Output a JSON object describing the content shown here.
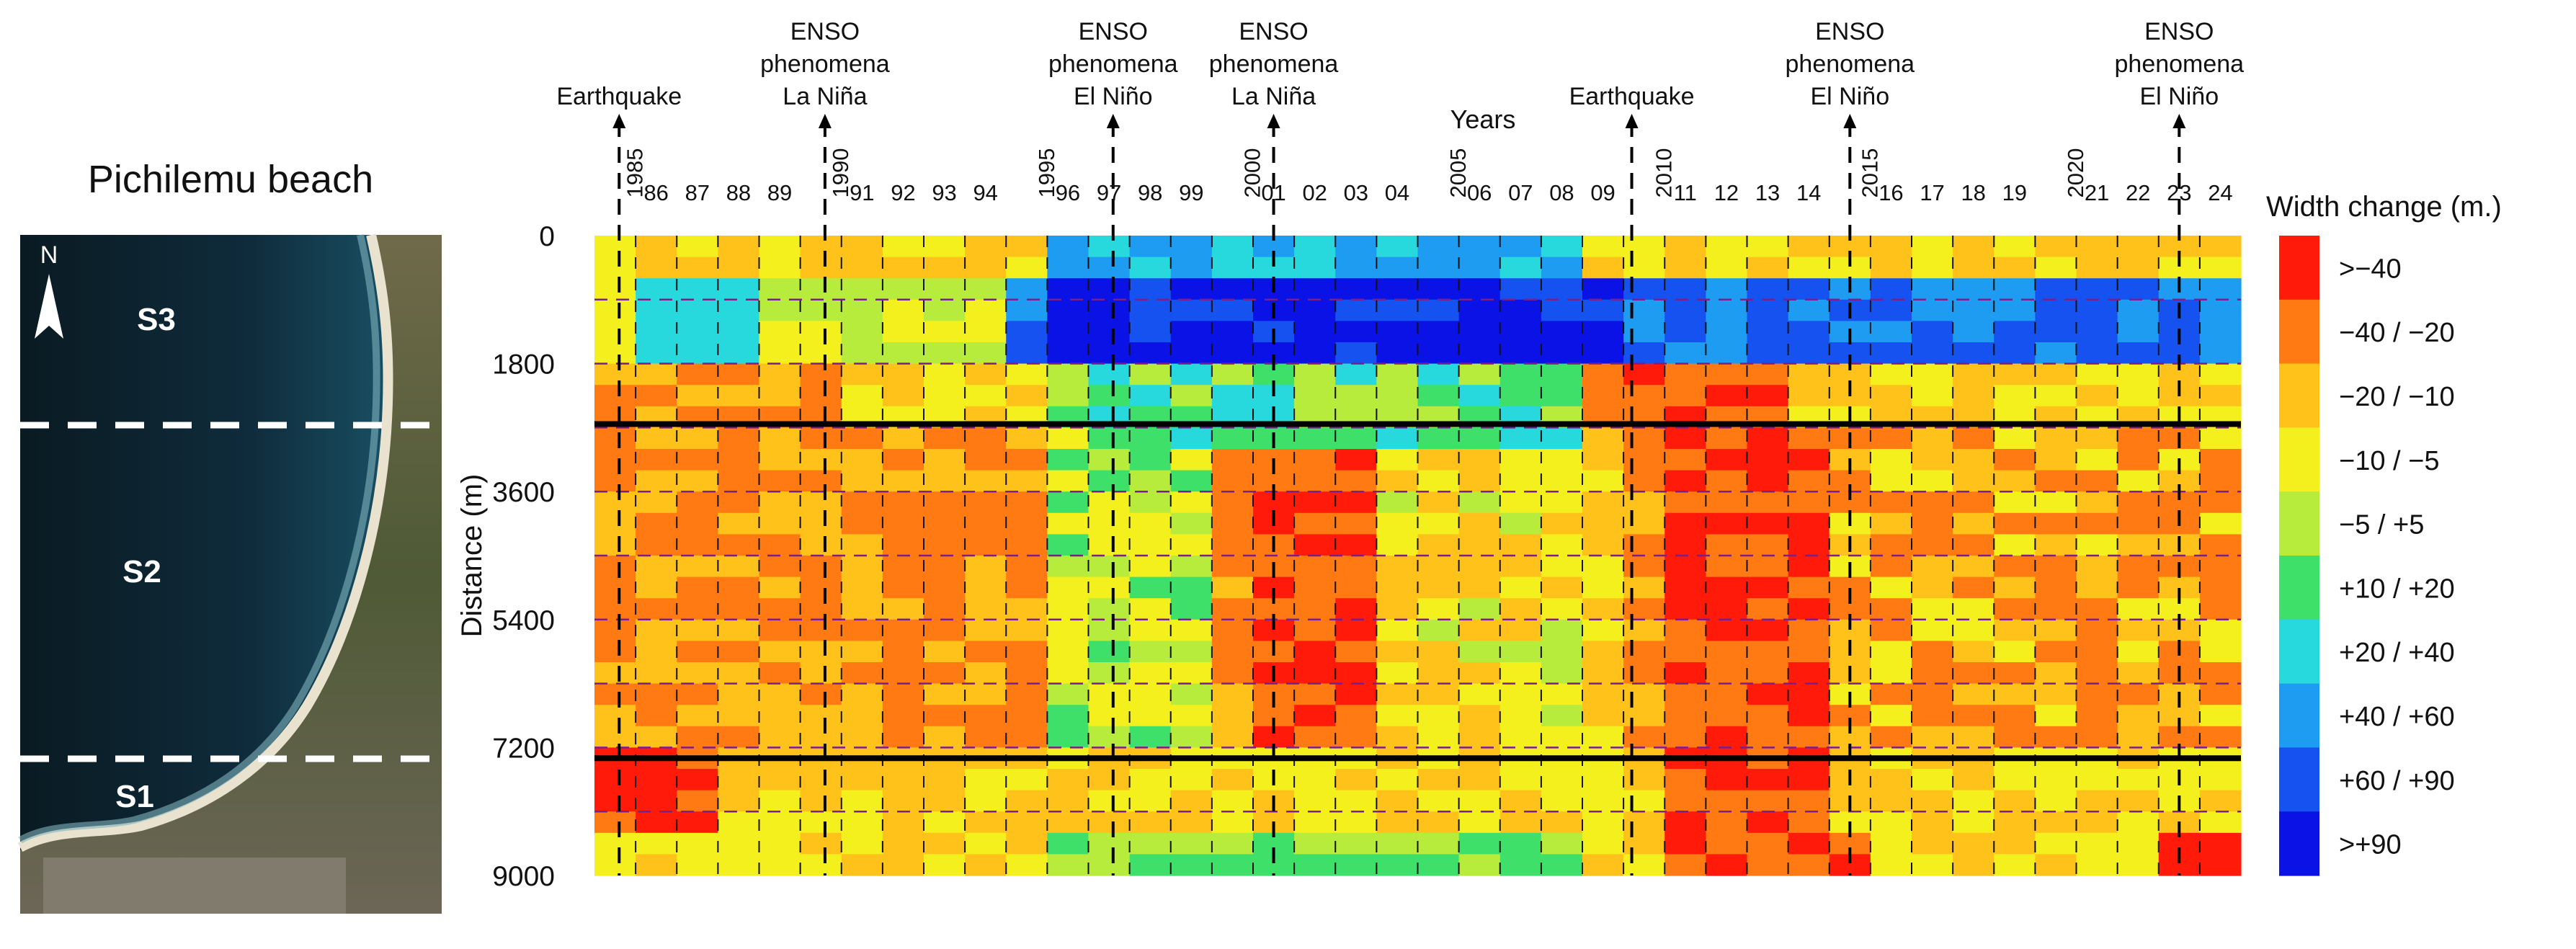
{
  "map_panel": {
    "title": "Pichilemu beach",
    "north_label": "N",
    "sector_labels": [
      "S3",
      "S2",
      "S1"
    ]
  },
  "chart_data": {
    "type": "heatmap",
    "title": "",
    "xlabel": "Years",
    "ylabel": "Distance (m)",
    "y_ticks": [
      0,
      1800,
      3600,
      5400,
      7200,
      9000
    ],
    "ylim": [
      0,
      9000
    ],
    "x_years": [
      1985,
      1986,
      1987,
      1988,
      1989,
      1990,
      1991,
      1992,
      1993,
      1994,
      1995,
      1996,
      1997,
      1998,
      1999,
      2000,
      2001,
      2002,
      2003,
      2004,
      2005,
      2006,
      2007,
      2008,
      2009,
      2010,
      2011,
      2012,
      2013,
      2014,
      2015,
      2016,
      2017,
      2018,
      2019,
      2020,
      2021,
      2022,
      2023,
      2024
    ],
    "x_tick_labels": [
      "1985",
      "86",
      "87",
      "88",
      "89",
      "1990",
      "91",
      "92",
      "93",
      "94",
      "1995",
      "96",
      "97",
      "98",
      "99",
      "2000",
      "01",
      "02",
      "03",
      "04",
      "2005",
      "06",
      "07",
      "08",
      "09",
      "2010",
      "11",
      "12",
      "13",
      "14",
      "2015",
      "16",
      "17",
      "18",
      "19",
      "2020",
      "21",
      "22",
      "23",
      "24"
    ],
    "sector_boundaries_m": [
      2650,
      7350
    ],
    "events": [
      {
        "year": 1985.6,
        "lines": [
          "Earthquake"
        ]
      },
      {
        "year": 1990.6,
        "lines": [
          "ENSO",
          "phenomena",
          "La Niña"
        ]
      },
      {
        "year": 1997.6,
        "lines": [
          "ENSO",
          "phenomena",
          "El Niño"
        ]
      },
      {
        "year": 2001.5,
        "lines": [
          "ENSO",
          "phenomena",
          "La Niña"
        ]
      },
      {
        "year": 2010.2,
        "lines": [
          "Earthquake"
        ]
      },
      {
        "year": 2015.5,
        "lines": [
          "ENSO",
          "phenomena",
          "El Niño"
        ]
      },
      {
        "year": 2023.5,
        "lines": [
          "ENSO",
          "phenomena",
          "El Niño"
        ]
      }
    ],
    "legend": {
      "title": "Width change (m.)",
      "bins": [
        {
          "label": ">−40",
          "color": "#ff1a0a"
        },
        {
          "label": "−40 / −20",
          "color": "#ff7a12"
        },
        {
          "label": "−20 / −10",
          "color": "#ffc21a"
        },
        {
          "label": "−10 / −5",
          "color": "#f4f01e"
        },
        {
          "label": "−5 / +5",
          "color": "#b8ec3c"
        },
        {
          "label": "+10 / +20",
          "color": "#3fe06a"
        },
        {
          "label": "+20 / +40",
          "color": "#27d8dc"
        },
        {
          "label": "+40 / +60",
          "color": "#1e9cf2"
        },
        {
          "label": "+60 / +90",
          "color": "#1552f0"
        },
        {
          "label": ">+90",
          "color": "#0a12e6"
        }
      ]
    }
  }
}
